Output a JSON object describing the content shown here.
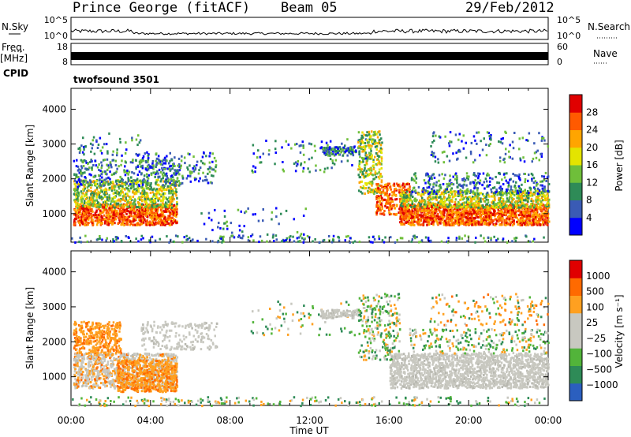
{
  "header": {
    "station": "Prince George (fitACF)",
    "beam": "Beam 05",
    "date": "29/Feb/2012"
  },
  "side": {
    "nsky": "N.Sky",
    "freq": "Freq.",
    "mhz": "[MHz]",
    "cpid": "CPID",
    "nsearch": "N.Search",
    "nave": "Nave"
  },
  "cpid_text": "twofsound 3501",
  "colors": {
    "fill_black": "#000000"
  },
  "chart_data": [
    {
      "type": "line",
      "title": "",
      "ylabel_left": "N.Sky",
      "ylabel_right": "N.Search",
      "left_ticks": [
        "10^5",
        "10^0"
      ],
      "right_ticks": [
        "10^5",
        "10^0"
      ],
      "description_series": "noise level, near 10^0 across the day"
    },
    {
      "type": "line",
      "ylabel_left": "Freq. [MHz]",
      "ylabel_right": "Nave",
      "left_ticks": [
        "18",
        "8"
      ],
      "right_ticks": [
        "60",
        "0"
      ],
      "ylim_left": [
        8,
        18
      ],
      "ylim_right": [
        0,
        60
      ]
    },
    {
      "type": "heatmap",
      "xlabel": "",
      "ylabel": "Slant Range [km]",
      "yticks": [
        1000,
        2000,
        3000,
        4000
      ],
      "ylim": [
        180,
        4600
      ],
      "xlim_hours": [
        0,
        24
      ],
      "colorbar_label": "Power [dB]",
      "colorbar_ticks": [
        "28",
        "24",
        "20",
        "16",
        "12",
        "8",
        "4"
      ],
      "colorbar_colors": [
        "#0000ff",
        "#3a5bb5",
        "#2e8b57",
        "#6fbf3a",
        "#e4e400",
        "#ffa500",
        "#ff5a00",
        "#e00000"
      ]
    },
    {
      "type": "heatmap",
      "xlabel": "Time UT",
      "ylabel": "Slant Range [km]",
      "yticks": [
        1000,
        2000,
        3000,
        4000
      ],
      "ylim": [
        180,
        4600
      ],
      "xlim_hours": [
        0,
        24
      ],
      "xtick_labels": [
        "00:00",
        "04:00",
        "08:00",
        "12:00",
        "16:00",
        "20:00",
        "00:00"
      ],
      "colorbar_label": "Velocity [m s⁻¹]",
      "colorbar_ticks": [
        "1000",
        "500",
        "100",
        "25",
        "−25",
        "−100",
        "−500",
        "−1000"
      ],
      "colorbar_colors": [
        "#2b5fbf",
        "#2e8b57",
        "#52b43a",
        "#c8c8c0",
        "#c8c8c0",
        "#ffa020",
        "#ff6a00",
        "#e00000"
      ]
    }
  ]
}
